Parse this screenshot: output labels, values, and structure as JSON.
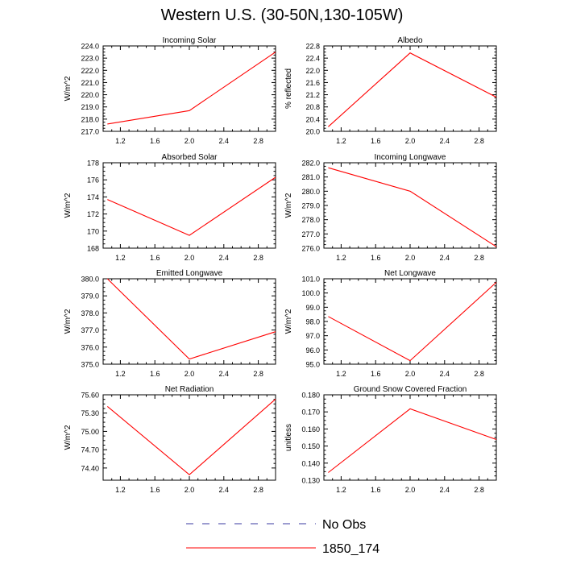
{
  "figure_title": "Western U.S. (30-50N,130-105W)",
  "legend": [
    {
      "label": "No Obs",
      "color": "#3a3aa0",
      "dash": true
    },
    {
      "label": "1850_174",
      "color": "#ff0000",
      "dash": false
    }
  ],
  "chart_data": [
    {
      "type": "line",
      "title": "Incoming Solar",
      "ylabel": "W/m^2",
      "xlim": [
        1,
        3
      ],
      "ylim": [
        217.0,
        224.0
      ],
      "xticks": [
        "1.2",
        "1.6",
        "2.0",
        "2.4",
        "2.8"
      ],
      "yticks": [
        "217.0",
        "218.0",
        "219.0",
        "220.0",
        "221.0",
        "222.0",
        "223.0",
        "224.0"
      ],
      "series": [
        {
          "color": "#ff0000",
          "x": [
            1.05,
            2.0,
            3.0
          ],
          "y": [
            217.6,
            218.7,
            223.5
          ]
        }
      ]
    },
    {
      "type": "line",
      "title": "Albedo",
      "ylabel": "% reflected",
      "xlim": [
        1,
        3
      ],
      "ylim": [
        20.0,
        22.8
      ],
      "xticks": [
        "1.2",
        "1.6",
        "2.0",
        "2.4",
        "2.8"
      ],
      "yticks": [
        "20.0",
        "20.4",
        "20.8",
        "21.2",
        "21.6",
        "22.0",
        "22.4",
        "22.8"
      ],
      "series": [
        {
          "color": "#ff0000",
          "x": [
            1.05,
            2.0,
            3.0
          ],
          "y": [
            20.15,
            22.57,
            21.12
          ]
        }
      ]
    },
    {
      "type": "line",
      "title": "Absorbed Solar",
      "ylabel": "W/m^2",
      "xlim": [
        1,
        3
      ],
      "ylim": [
        168,
        178
      ],
      "xticks": [
        "1.2",
        "1.6",
        "2.0",
        "2.4",
        "2.8"
      ],
      "yticks": [
        "168",
        "170",
        "172",
        "174",
        "176",
        "178"
      ],
      "series": [
        {
          "color": "#ff0000",
          "x": [
            1.05,
            2.0,
            3.0
          ],
          "y": [
            173.7,
            169.5,
            176.3
          ]
        }
      ]
    },
    {
      "type": "line",
      "title": "Incoming Longwave",
      "ylabel": "W/m^2",
      "xlim": [
        1,
        3
      ],
      "ylim": [
        276.0,
        282.0
      ],
      "xticks": [
        "1.2",
        "1.6",
        "2.0",
        "2.4",
        "2.8"
      ],
      "yticks": [
        "276.0",
        "277.0",
        "278.0",
        "279.0",
        "280.0",
        "281.0",
        "282.0"
      ],
      "series": [
        {
          "color": "#ff0000",
          "x": [
            1.05,
            2.0,
            3.0
          ],
          "y": [
            281.65,
            280.0,
            276.1
          ]
        }
      ]
    },
    {
      "type": "line",
      "title": "Emitted Longwave",
      "ylabel": "W/m^2",
      "xlim": [
        1,
        3
      ],
      "ylim": [
        375.0,
        380.0
      ],
      "xticks": [
        "1.2",
        "1.6",
        "2.0",
        "2.4",
        "2.8"
      ],
      "yticks": [
        "375.0",
        "376.0",
        "377.0",
        "378.0",
        "379.0",
        "380.0"
      ],
      "series": [
        {
          "color": "#ff0000",
          "x": [
            1.05,
            2.0,
            3.0
          ],
          "y": [
            380.0,
            375.3,
            376.9
          ]
        }
      ]
    },
    {
      "type": "line",
      "title": "Net Longwave",
      "ylabel": "W/m^2",
      "xlim": [
        1,
        3
      ],
      "ylim": [
        95.0,
        101.0
      ],
      "xticks": [
        "1.2",
        "1.6",
        "2.0",
        "2.4",
        "2.8"
      ],
      "yticks": [
        "95.0",
        "96.0",
        "97.0",
        "98.0",
        "99.0",
        "100.0",
        "101.0"
      ],
      "series": [
        {
          "color": "#ff0000",
          "x": [
            1.05,
            2.0,
            3.0
          ],
          "y": [
            98.35,
            95.25,
            100.75
          ]
        }
      ]
    },
    {
      "type": "line",
      "title": "Net Radiation",
      "ylabel": "W/m^2",
      "xlim": [
        1,
        3
      ],
      "ylim": [
        74.2,
        75.6
      ],
      "xticks": [
        "1.2",
        "1.6",
        "2.0",
        "2.4",
        "2.8"
      ],
      "yticks": [
        "74.40",
        "74.70",
        "75.00",
        "75.30",
        "75.60"
      ],
      "yticks_values": [
        74.4,
        74.7,
        75.0,
        75.3,
        75.6
      ],
      "series": [
        {
          "color": "#ff0000",
          "x": [
            1.05,
            2.0,
            3.0
          ],
          "y": [
            75.41,
            74.29,
            75.53
          ]
        }
      ]
    },
    {
      "type": "line",
      "title": "Ground Snow Covered Fraction",
      "ylabel": "unitless",
      "xlim": [
        1,
        3
      ],
      "ylim": [
        0.13,
        0.18
      ],
      "xticks": [
        "1.2",
        "1.6",
        "2.0",
        "2.4",
        "2.8"
      ],
      "yticks": [
        "0.130",
        "0.140",
        "0.150",
        "0.160",
        "0.170",
        "0.180"
      ],
      "series": [
        {
          "color": "#ff0000",
          "x": [
            1.05,
            2.0,
            3.0
          ],
          "y": [
            0.1345,
            0.1718,
            0.1538
          ]
        }
      ]
    }
  ]
}
